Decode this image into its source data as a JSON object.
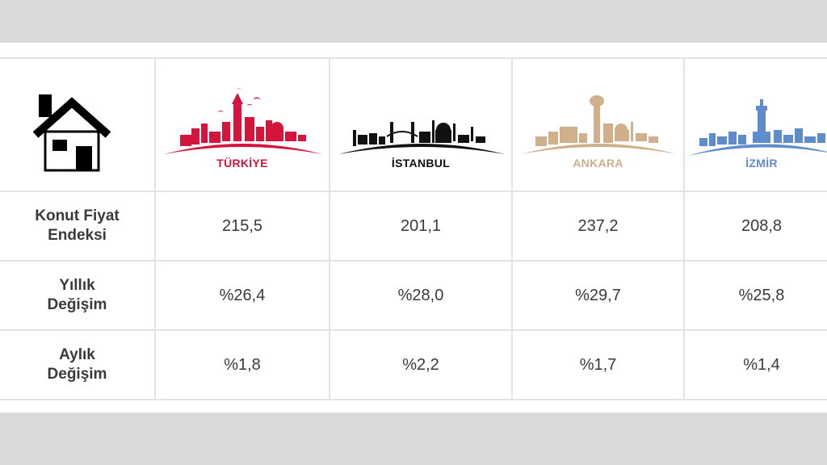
{
  "colors": {
    "turkiye": "#d4163c",
    "istanbul": "#111111",
    "ankara": "#cfb08a",
    "izmir": "#5f8dcc",
    "border": "#e3e3e3",
    "frame": "#d9d9d9"
  },
  "header": {
    "icon": "house-icon",
    "cities": [
      {
        "label": "TÜRKİYE",
        "color": "#d4163c",
        "icon": "turkiye-skyline-icon"
      },
      {
        "label": "İSTANBUL",
        "color": "#111111",
        "icon": "istanbul-skyline-icon"
      },
      {
        "label": "ANKARA",
        "color": "#cfb08a",
        "icon": "ankara-skyline-icon"
      },
      {
        "label": "İZMİR",
        "color": "#5f8dcc",
        "icon": "izmir-skyline-icon"
      }
    ]
  },
  "rows": [
    {
      "label_line1": "Konut Fiyat",
      "label_line2": "Endeksi",
      "values": [
        "215,5",
        "201,1",
        "237,2",
        "208,8"
      ]
    },
    {
      "label_line1": "Yıllık",
      "label_line2": "Değişim",
      "values": [
        "%26,4",
        "%28,0",
        "%29,7",
        "%25,8"
      ]
    },
    {
      "label_line1": "Aylık",
      "label_line2": "Değişim",
      "values": [
        "%1,8",
        "%2,2",
        "%1,7",
        "%1,4"
      ]
    }
  ]
}
